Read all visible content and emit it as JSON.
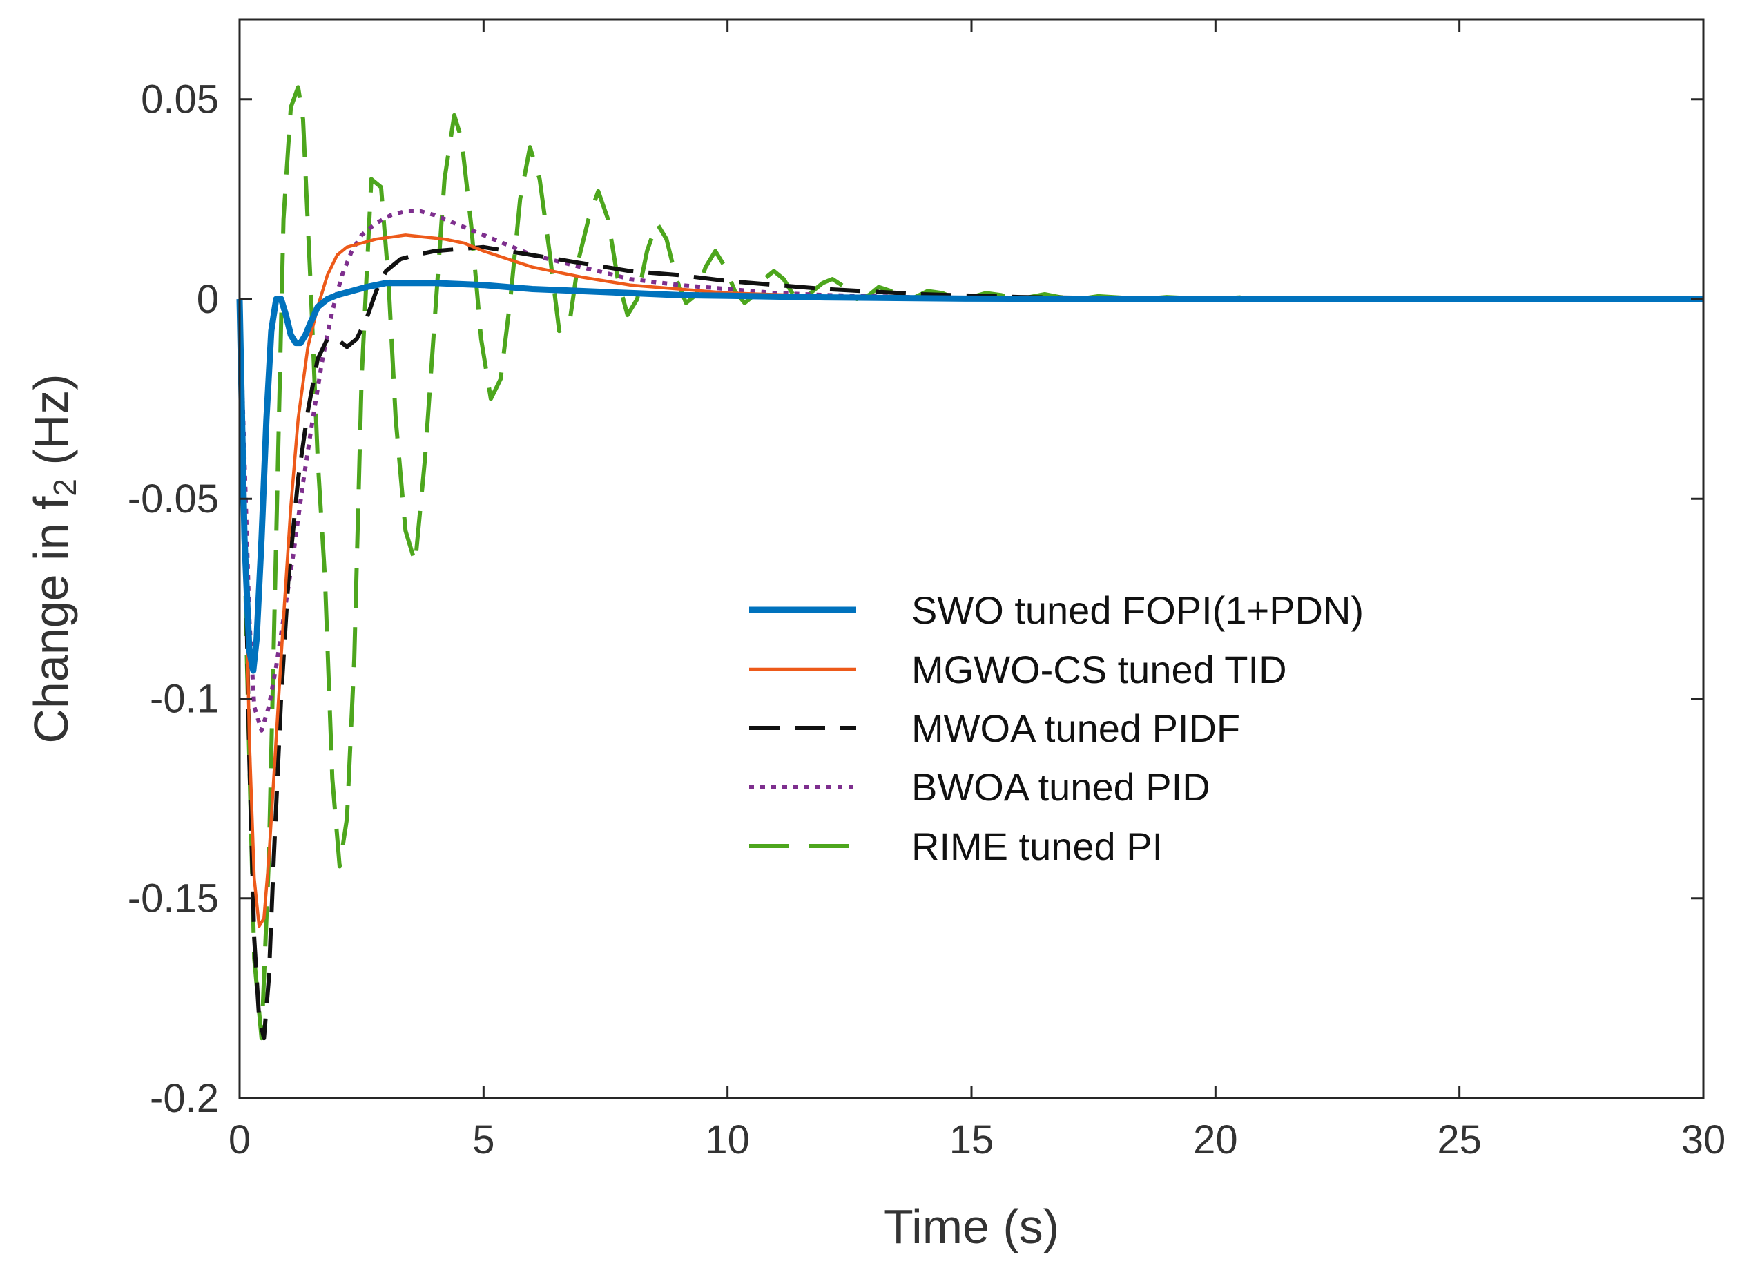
{
  "chart_data": {
    "type": "line",
    "title": "",
    "xlabel": "Time (s)",
    "ylabel": {
      "prefix": "Change in f",
      "subscript": "2",
      "suffix": " (Hz)"
    },
    "xlim": [
      0,
      30
    ],
    "ylim": [
      -0.2,
      0.07
    ],
    "xticks": [
      0,
      5,
      10,
      15,
      20,
      25,
      30
    ],
    "xtick_labels": [
      "0",
      "5",
      "10",
      "15",
      "20",
      "25",
      "30"
    ],
    "yticks": [
      -0.2,
      -0.15,
      -0.1,
      -0.05,
      0,
      0.05
    ],
    "ytick_labels": [
      "-0.2",
      "-0.15",
      "-0.1",
      "-0.05",
      "0",
      "0.05"
    ],
    "grid": false,
    "legend_position": "center-right",
    "series": [
      {
        "name": "SWO tuned FOPI(1+PDN)",
        "color": "#0072BD",
        "style": "solid",
        "x": [
          0,
          0.1,
          0.2,
          0.28,
          0.35,
          0.45,
          0.55,
          0.65,
          0.75,
          0.85,
          0.95,
          1.05,
          1.15,
          1.25,
          1.35,
          1.45,
          1.6,
          1.8,
          2.0,
          2.3,
          2.6,
          3.0,
          3.5,
          4.0,
          5.0,
          6.0,
          7.0,
          8.0,
          9.0,
          10.0,
          12.0,
          15.0,
          20.0,
          25.0,
          30.0
        ],
        "y": [
          0,
          -0.06,
          -0.088,
          -0.093,
          -0.085,
          -0.06,
          -0.03,
          -0.008,
          0.0,
          0.0,
          -0.004,
          -0.009,
          -0.011,
          -0.011,
          -0.009,
          -0.006,
          -0.002,
          0.0,
          0.001,
          0.002,
          0.003,
          0.004,
          0.004,
          0.004,
          0.0035,
          0.0025,
          0.002,
          0.0015,
          0.001,
          0.0008,
          0.0004,
          0.0001,
          0.0,
          0.0,
          0.0
        ]
      },
      {
        "name": "MGWO-CS tuned TID",
        "color": "#ED5A1A",
        "style": "solid",
        "x": [
          0,
          0.1,
          0.2,
          0.3,
          0.4,
          0.5,
          0.6,
          0.75,
          0.9,
          1.05,
          1.2,
          1.4,
          1.6,
          1.8,
          2.0,
          2.2,
          2.5,
          2.8,
          3.1,
          3.4,
          3.8,
          4.2,
          4.6,
          5.0,
          5.5,
          6.0,
          7.0,
          8.0,
          9.0,
          10.0,
          12.0,
          14.0,
          16.0,
          18.0,
          20.0,
          25.0,
          30.0
        ],
        "y": [
          0,
          -0.05,
          -0.11,
          -0.145,
          -0.157,
          -0.155,
          -0.14,
          -0.11,
          -0.08,
          -0.052,
          -0.03,
          -0.012,
          -0.002,
          0.006,
          0.011,
          0.013,
          0.014,
          0.015,
          0.0155,
          0.016,
          0.0155,
          0.015,
          0.014,
          0.012,
          0.01,
          0.008,
          0.0055,
          0.0035,
          0.0025,
          0.0015,
          0.0007,
          0.0003,
          0.0001,
          0.0,
          0.0,
          0.0,
          0.0
        ]
      },
      {
        "name": "MWOA tuned PIDF",
        "color": "#111111",
        "style": "dashed",
        "x": [
          0,
          0.1,
          0.2,
          0.3,
          0.4,
          0.5,
          0.6,
          0.7,
          0.85,
          1.0,
          1.2,
          1.4,
          1.6,
          1.8,
          2.0,
          2.2,
          2.4,
          2.6,
          2.8,
          3.0,
          3.3,
          3.6,
          4.0,
          4.5,
          5.0,
          6.0,
          7.0,
          8.0,
          9.0,
          10.0,
          11.0,
          12.0,
          14.0,
          16.0,
          18.0,
          20.0,
          25.0,
          30.0
        ],
        "y": [
          0,
          -0.05,
          -0.115,
          -0.16,
          -0.18,
          -0.185,
          -0.17,
          -0.14,
          -0.1,
          -0.07,
          -0.045,
          -0.028,
          -0.015,
          -0.01,
          -0.01,
          -0.012,
          -0.01,
          -0.005,
          0.002,
          0.007,
          0.01,
          0.011,
          0.012,
          0.0125,
          0.013,
          0.011,
          0.009,
          0.007,
          0.006,
          0.0045,
          0.0035,
          0.0025,
          0.0012,
          0.0005,
          0.0002,
          0.0001,
          0.0,
          0.0
        ]
      },
      {
        "name": "BWOA tuned PID",
        "color": "#7E2F8E",
        "style": "dotted",
        "x": [
          0,
          0.1,
          0.2,
          0.3,
          0.45,
          0.6,
          0.75,
          0.9,
          1.1,
          1.3,
          1.5,
          1.7,
          1.9,
          2.1,
          2.3,
          2.5,
          2.8,
          3.1,
          3.4,
          3.7,
          4.0,
          4.4,
          4.8,
          5.2,
          5.6,
          6.0,
          7.0,
          8.0,
          9.0,
          10.0,
          11.0,
          12.0,
          14.0,
          16.0,
          18.0,
          20.0,
          25.0,
          30.0
        ],
        "y": [
          0,
          -0.04,
          -0.08,
          -0.102,
          -0.108,
          -0.102,
          -0.092,
          -0.08,
          -0.064,
          -0.046,
          -0.03,
          -0.015,
          -0.003,
          0.006,
          0.012,
          0.016,
          0.019,
          0.021,
          0.022,
          0.022,
          0.021,
          0.019,
          0.017,
          0.015,
          0.013,
          0.011,
          0.008,
          0.005,
          0.0035,
          0.0025,
          0.0015,
          0.001,
          0.0004,
          0.0002,
          0.0001,
          0.0,
          0.0,
          0.0
        ]
      },
      {
        "name": "RIME tuned PI",
        "color": "#4DA61D",
        "style": "longdash",
        "x": [
          0,
          0.15,
          0.3,
          0.45,
          0.6,
          0.75,
          0.9,
          1.05,
          1.2,
          1.3,
          1.45,
          1.6,
          1.75,
          1.9,
          2.05,
          2.2,
          2.35,
          2.5,
          2.7,
          2.9,
          3.05,
          3.2,
          3.4,
          3.6,
          3.8,
          4.0,
          4.2,
          4.4,
          4.55,
          4.75,
          4.95,
          5.15,
          5.35,
          5.55,
          5.75,
          5.95,
          6.15,
          6.35,
          6.55,
          6.75,
          6.95,
          7.15,
          7.35,
          7.55,
          7.75,
          7.95,
          8.15,
          8.35,
          8.55,
          8.75,
          8.95,
          9.15,
          9.35,
          9.55,
          9.75,
          9.95,
          10.15,
          10.35,
          10.55,
          10.75,
          10.95,
          11.15,
          11.35,
          11.55,
          11.75,
          11.95,
          12.15,
          12.4,
          12.65,
          12.9,
          13.1,
          13.35,
          13.6,
          13.85,
          14.1,
          14.4,
          14.7,
          15.0,
          15.3,
          15.6,
          15.9,
          16.2,
          16.5,
          16.8,
          17.2,
          17.6,
          18.0,
          18.5,
          19.0,
          19.5,
          20.0,
          20.5,
          21.0,
          22.0,
          24.0,
          27.0,
          30.0
        ],
        "y": [
          0,
          -0.09,
          -0.165,
          -0.185,
          -0.14,
          -0.06,
          0.02,
          0.048,
          0.053,
          0.045,
          0.005,
          -0.04,
          -0.07,
          -0.12,
          -0.142,
          -0.13,
          -0.09,
          -0.02,
          0.03,
          0.028,
          0.005,
          -0.03,
          -0.058,
          -0.066,
          -0.04,
          -0.005,
          0.03,
          0.046,
          0.04,
          0.018,
          -0.01,
          -0.025,
          -0.02,
          0.0,
          0.025,
          0.038,
          0.03,
          0.012,
          -0.008,
          -0.007,
          0.01,
          0.02,
          0.027,
          0.02,
          0.005,
          -0.004,
          0.0,
          0.012,
          0.019,
          0.015,
          0.005,
          -0.001,
          0.001,
          0.008,
          0.012,
          0.008,
          0.002,
          -0.001,
          0.001,
          0.005,
          0.007,
          0.005,
          0.001,
          0.0,
          0.002,
          0.004,
          0.005,
          0.003,
          0.0,
          0.001,
          0.003,
          0.002,
          0.0,
          0.0005,
          0.002,
          0.0015,
          0.0,
          0.0005,
          0.0015,
          0.001,
          0.0,
          0.0005,
          0.0012,
          0.0005,
          0.0,
          0.0007,
          0.0004,
          0.0,
          0.0005,
          0.0002,
          0.0,
          0.0004,
          0.0001,
          0.0,
          0.0,
          0.0,
          0.0
        ]
      }
    ]
  }
}
